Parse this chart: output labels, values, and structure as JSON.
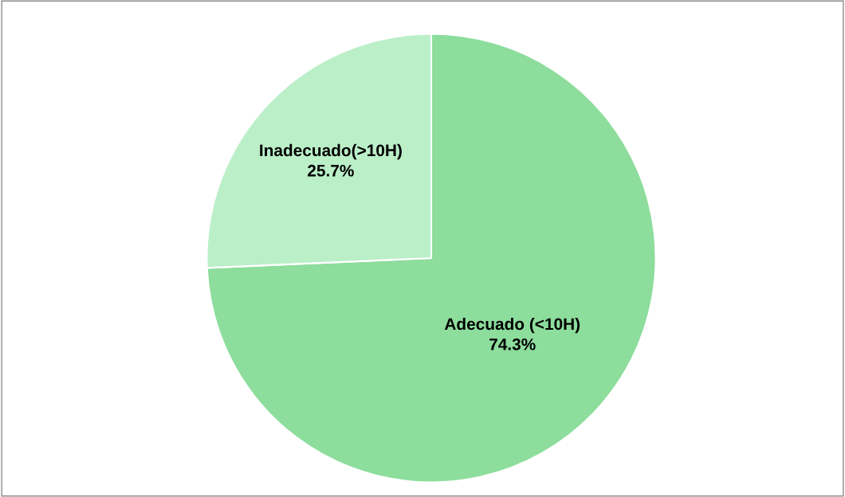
{
  "chart_data": {
    "type": "pie",
    "categories": [
      "Adecuado (<10H)",
      "Inadecuado(>10H)"
    ],
    "values": [
      74.3,
      25.7
    ],
    "colors": [
      "#8ddd9c",
      "#bbefc8"
    ],
    "value_labels": [
      "74.3%",
      "25.7%"
    ],
    "legend": false
  }
}
